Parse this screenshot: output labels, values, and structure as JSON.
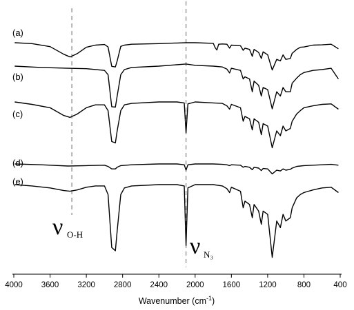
{
  "chart_data": {
    "type": "line",
    "title": "",
    "xlabel": "Wavenumber (cm",
    "xlabel_sup": "-1",
    "xlabel_close": ")",
    "ylabel": "",
    "xlim": [
      4000,
      400
    ],
    "x_reversed": true,
    "x_ticks": [
      4000,
      3600,
      3200,
      2800,
      2400,
      2000,
      1600,
      1200,
      800,
      400
    ],
    "x_tick_labels": [
      "4000",
      "3600",
      "3200",
      "2800",
      "2400",
      "2000",
      "1600",
      "1200",
      "800",
      "400"
    ],
    "y_ticks": "none",
    "grid": false,
    "legend": "none",
    "line_color": "#000000",
    "series": [
      {
        "label": "(a)",
        "offset": 4,
        "points": [
          [
            3990,
            0.0
          ],
          [
            3800,
            0.03
          ],
          [
            3600,
            0.13
          ],
          [
            3450,
            0.38
          ],
          [
            3380,
            0.47
          ],
          [
            3300,
            0.36
          ],
          [
            3200,
            0.15
          ],
          [
            3100,
            0.08
          ],
          [
            3000,
            0.06
          ],
          [
            2960,
            0.14
          ],
          [
            2920,
            0.78
          ],
          [
            2880,
            0.8
          ],
          [
            2860,
            0.6
          ],
          [
            2820,
            0.12
          ],
          [
            2780,
            0.08
          ],
          [
            2700,
            0.05
          ],
          [
            2400,
            0.03
          ],
          [
            2100,
            0.0
          ],
          [
            2000,
            0.0
          ],
          [
            1800,
            0.02
          ],
          [
            1780,
            0.16
          ],
          [
            1760,
            0.24
          ],
          [
            1740,
            0.05
          ],
          [
            1700,
            0.04
          ],
          [
            1650,
            0.05
          ],
          [
            1620,
            0.18
          ],
          [
            1600,
            0.08
          ],
          [
            1500,
            0.1
          ],
          [
            1470,
            0.25
          ],
          [
            1450,
            0.18
          ],
          [
            1400,
            0.22
          ],
          [
            1370,
            0.45
          ],
          [
            1350,
            0.22
          ],
          [
            1300,
            0.32
          ],
          [
            1270,
            0.52
          ],
          [
            1250,
            0.3
          ],
          [
            1200,
            0.4
          ],
          [
            1150,
            0.9
          ],
          [
            1100,
            0.55
          ],
          [
            1060,
            0.6
          ],
          [
            1030,
            0.4
          ],
          [
            1000,
            0.55
          ],
          [
            950,
            0.52
          ],
          [
            930,
            0.35
          ],
          [
            880,
            0.22
          ],
          [
            840,
            0.15
          ],
          [
            800,
            0.14
          ],
          [
            700,
            0.08
          ],
          [
            600,
            0.07
          ],
          [
            500,
            0.05
          ],
          [
            420,
            0.2
          ]
        ]
      },
      {
        "label": "(b)",
        "offset": 3,
        "points": [
          [
            3990,
            0.0
          ],
          [
            3700,
            0.03
          ],
          [
            3400,
            0.05
          ],
          [
            3200,
            0.06
          ],
          [
            3000,
            0.1
          ],
          [
            2960,
            0.2
          ],
          [
            2920,
            0.95
          ],
          [
            2880,
            0.96
          ],
          [
            2860,
            0.7
          ],
          [
            2820,
            0.2
          ],
          [
            2780,
            0.08
          ],
          [
            2700,
            0.03
          ],
          [
            2400,
            0.0
          ],
          [
            2100,
            -0.05
          ],
          [
            2000,
            -0.02
          ],
          [
            1800,
            0.0
          ],
          [
            1700,
            0.02
          ],
          [
            1650,
            0.07
          ],
          [
            1620,
            0.16
          ],
          [
            1600,
            0.05
          ],
          [
            1500,
            0.1
          ],
          [
            1470,
            0.3
          ],
          [
            1450,
            0.25
          ],
          [
            1400,
            0.3
          ],
          [
            1370,
            0.6
          ],
          [
            1350,
            0.35
          ],
          [
            1300,
            0.45
          ],
          [
            1270,
            0.7
          ],
          [
            1250,
            0.5
          ],
          [
            1200,
            0.55
          ],
          [
            1150,
            1.0
          ],
          [
            1100,
            0.6
          ],
          [
            1060,
            0.7
          ],
          [
            1030,
            0.5
          ],
          [
            1000,
            0.6
          ],
          [
            950,
            0.6
          ],
          [
            930,
            0.4
          ],
          [
            880,
            0.28
          ],
          [
            840,
            0.2
          ],
          [
            800,
            0.15
          ],
          [
            700,
            0.1
          ],
          [
            600,
            0.08
          ],
          [
            500,
            0.05
          ],
          [
            420,
            0.3
          ]
        ]
      },
      {
        "label": "(c)",
        "offset": 2,
        "points": [
          [
            3990,
            0.0
          ],
          [
            3800,
            0.05
          ],
          [
            3600,
            0.12
          ],
          [
            3450,
            0.28
          ],
          [
            3380,
            0.32
          ],
          [
            3300,
            0.25
          ],
          [
            3200,
            0.12
          ],
          [
            3100,
            0.06
          ],
          [
            3000,
            0.06
          ],
          [
            2960,
            0.18
          ],
          [
            2920,
            0.82
          ],
          [
            2880,
            0.85
          ],
          [
            2860,
            0.6
          ],
          [
            2820,
            0.18
          ],
          [
            2780,
            0.06
          ],
          [
            2700,
            0.03
          ],
          [
            2400,
            0.0
          ],
          [
            2200,
            0.0
          ],
          [
            2120,
            0.02
          ],
          [
            2100,
            0.64
          ],
          [
            2080,
            0.04
          ],
          [
            2000,
            0.0
          ],
          [
            1800,
            0.02
          ],
          [
            1700,
            0.03
          ],
          [
            1650,
            0.08
          ],
          [
            1620,
            0.15
          ],
          [
            1600,
            0.05
          ],
          [
            1500,
            0.12
          ],
          [
            1470,
            0.4
          ],
          [
            1450,
            0.3
          ],
          [
            1400,
            0.35
          ],
          [
            1370,
            0.58
          ],
          [
            1350,
            0.35
          ],
          [
            1300,
            0.42
          ],
          [
            1270,
            0.68
          ],
          [
            1250,
            0.45
          ],
          [
            1200,
            0.5
          ],
          [
            1150,
            0.95
          ],
          [
            1100,
            0.6
          ],
          [
            1060,
            0.7
          ],
          [
            1030,
            0.5
          ],
          [
            1000,
            0.6
          ],
          [
            950,
            0.55
          ],
          [
            930,
            0.4
          ],
          [
            880,
            0.25
          ],
          [
            840,
            0.18
          ],
          [
            800,
            0.12
          ],
          [
            700,
            0.08
          ],
          [
            600,
            0.05
          ],
          [
            500,
            0.04
          ],
          [
            420,
            0.15
          ]
        ]
      },
      {
        "label": "(d)",
        "offset": 1,
        "points": [
          [
            3990,
            0.0
          ],
          [
            3700,
            0.02
          ],
          [
            3400,
            0.05
          ],
          [
            3200,
            0.04
          ],
          [
            3000,
            0.03
          ],
          [
            2960,
            0.06
          ],
          [
            2920,
            0.12
          ],
          [
            2880,
            0.12
          ],
          [
            2860,
            0.08
          ],
          [
            2820,
            0.04
          ],
          [
            2700,
            0.02
          ],
          [
            2400,
            0.0
          ],
          [
            2200,
            0.0
          ],
          [
            2120,
            0.02
          ],
          [
            2100,
            0.15
          ],
          [
            2080,
            0.02
          ],
          [
            2000,
            0.0
          ],
          [
            1800,
            0.0
          ],
          [
            1700,
            0.01
          ],
          [
            1650,
            0.02
          ],
          [
            1620,
            0.04
          ],
          [
            1600,
            0.02
          ],
          [
            1500,
            0.03
          ],
          [
            1470,
            0.08
          ],
          [
            1450,
            0.06
          ],
          [
            1400,
            0.08
          ],
          [
            1370,
            0.14
          ],
          [
            1350,
            0.08
          ],
          [
            1300,
            0.1
          ],
          [
            1270,
            0.16
          ],
          [
            1250,
            0.11
          ],
          [
            1200,
            0.12
          ],
          [
            1150,
            0.24
          ],
          [
            1100,
            0.15
          ],
          [
            1060,
            0.17
          ],
          [
            1030,
            0.12
          ],
          [
            1000,
            0.15
          ],
          [
            950,
            0.13
          ],
          [
            930,
            0.1
          ],
          [
            880,
            0.06
          ],
          [
            840,
            0.05
          ],
          [
            800,
            0.04
          ],
          [
            700,
            0.03
          ],
          [
            600,
            0.02
          ],
          [
            500,
            0.01
          ],
          [
            420,
            0.03
          ]
        ]
      },
      {
        "label": "(e)",
        "offset": 0,
        "points": [
          [
            3990,
            0.0
          ],
          [
            3800,
            0.02
          ],
          [
            3600,
            0.05
          ],
          [
            3450,
            0.09
          ],
          [
            3380,
            0.1
          ],
          [
            3300,
            0.08
          ],
          [
            3200,
            0.04
          ],
          [
            3100,
            0.02
          ],
          [
            3000,
            0.02
          ],
          [
            2960,
            0.15
          ],
          [
            2920,
            0.95
          ],
          [
            2880,
            1.0
          ],
          [
            2860,
            0.7
          ],
          [
            2820,
            0.15
          ],
          [
            2780,
            0.05
          ],
          [
            2700,
            0.02
          ],
          [
            2400,
            0.0
          ],
          [
            2200,
            0.0
          ],
          [
            2120,
            0.02
          ],
          [
            2100,
            0.92
          ],
          [
            2080,
            0.05
          ],
          [
            2000,
            0.0
          ],
          [
            1800,
            0.0
          ],
          [
            1700,
            0.02
          ],
          [
            1650,
            0.06
          ],
          [
            1620,
            0.12
          ],
          [
            1600,
            0.04
          ],
          [
            1500,
            0.1
          ],
          [
            1470,
            0.35
          ],
          [
            1450,
            0.25
          ],
          [
            1400,
            0.3
          ],
          [
            1370,
            0.5
          ],
          [
            1350,
            0.3
          ],
          [
            1300,
            0.4
          ],
          [
            1270,
            0.6
          ],
          [
            1250,
            0.4
          ],
          [
            1200,
            0.45
          ],
          [
            1150,
            1.1
          ],
          [
            1100,
            0.55
          ],
          [
            1060,
            0.65
          ],
          [
            1030,
            0.45
          ],
          [
            1000,
            0.55
          ],
          [
            950,
            0.5
          ],
          [
            930,
            0.35
          ],
          [
            880,
            0.2
          ],
          [
            840,
            0.15
          ],
          [
            800,
            0.12
          ],
          [
            700,
            0.08
          ],
          [
            600,
            0.05
          ],
          [
            500,
            0.04
          ],
          [
            420,
            0.12
          ]
        ]
      }
    ],
    "reference_lines": [
      {
        "x": 3360,
        "style": "dashed"
      },
      {
        "x": 2100,
        "style": "dashed"
      }
    ],
    "annotations": [
      {
        "symbol": "ν",
        "sub": "O-H",
        "anchor_x": 3360
      },
      {
        "symbol": "ν",
        "sub": "N₃",
        "anchor_x": 2100
      }
    ]
  }
}
